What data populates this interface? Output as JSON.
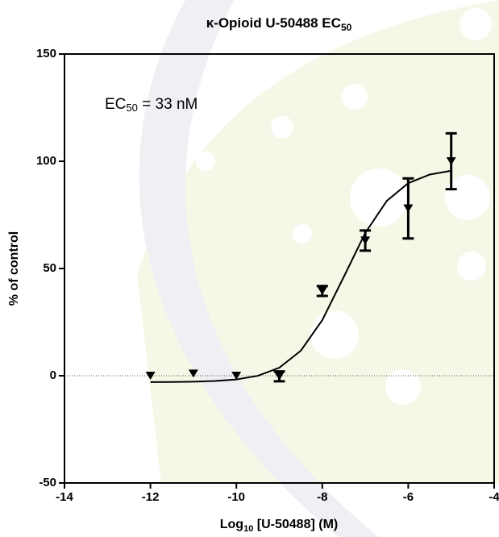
{
  "chart_data": {
    "type": "scatter",
    "title": "κ-Opioid U-50488 EC",
    "title_sub": "50",
    "x_label": "Log",
    "x_label_sub": "10",
    "x_label_rest": " [U-50488] (M)",
    "y_label": "% of control",
    "annotation": "EC",
    "annotation_sub": "50",
    "annotation_rest": " = 33 nM",
    "x": [
      -12,
      -11,
      -10,
      -9,
      -8,
      -7,
      -6,
      -5
    ],
    "values": [
      0,
      1,
      0,
      -0.3,
      39.5,
      63,
      78,
      100
    ],
    "errors": [
      0,
      0,
      0,
      2.3,
      2.3,
      4.7,
      14,
      13
    ],
    "color": "#000000",
    "fit": {
      "x": [
        -12,
        -11.5,
        -11,
        -10.5,
        -10,
        -9.5,
        -9,
        -8.5,
        -8,
        -7.5,
        -7,
        -6.5,
        -6,
        -5.5,
        -5
      ],
      "values": [
        -2.96,
        -2.9,
        -2.77,
        -2.46,
        -1.73,
        -0.03,
        3.76,
        11.66,
        25.94,
        46.1,
        66.6,
        81.5,
        89.8,
        93.8,
        95.6
      ]
    },
    "xlim": [
      -14,
      -4
    ],
    "xticks": [
      -14,
      -12,
      -10,
      -8,
      -6,
      -4
    ],
    "ylim": [
      -50,
      150
    ],
    "yticks": [
      -50,
      0,
      50,
      100,
      150
    ]
  }
}
